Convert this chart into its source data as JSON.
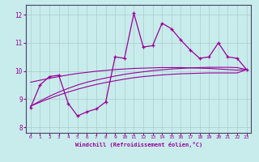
{
  "xlabel": "Windchill (Refroidissement éolien,°C)",
  "bg_color": "#c8ecec",
  "line_color": "#990099",
  "grid_color": "#aacccc",
  "xlim": [
    -0.5,
    23.5
  ],
  "ylim": [
    7.8,
    12.35
  ],
  "xticks": [
    0,
    1,
    2,
    3,
    4,
    5,
    6,
    7,
    8,
    9,
    10,
    11,
    12,
    13,
    14,
    15,
    16,
    17,
    18,
    19,
    20,
    21,
    22,
    23
  ],
  "yticks": [
    8,
    9,
    10,
    11,
    12
  ],
  "hours": [
    0,
    1,
    2,
    3,
    4,
    5,
    6,
    7,
    8,
    9,
    10,
    11,
    12,
    13,
    14,
    15,
    16,
    17,
    18,
    19,
    20,
    21,
    22,
    23
  ],
  "line_data": [
    8.7,
    9.5,
    9.8,
    9.85,
    8.85,
    8.4,
    8.55,
    8.65,
    8.9,
    10.5,
    10.45,
    12.05,
    10.85,
    10.9,
    11.7,
    11.5,
    11.1,
    10.75,
    10.45,
    10.5,
    11.0,
    10.5,
    10.45,
    10.05
  ],
  "reg1": [
    8.75,
    8.93,
    9.1,
    9.25,
    9.38,
    9.5,
    9.6,
    9.68,
    9.75,
    9.82,
    9.88,
    9.93,
    9.97,
    10.01,
    10.04,
    10.07,
    10.09,
    10.11,
    10.12,
    10.13,
    10.13,
    10.13,
    10.12,
    10.05
  ],
  "reg2": [
    9.6,
    9.67,
    9.74,
    9.8,
    9.86,
    9.91,
    9.95,
    9.99,
    10.02,
    10.05,
    10.07,
    10.09,
    10.1,
    10.11,
    10.12,
    10.12,
    10.12,
    10.11,
    10.1,
    10.09,
    10.07,
    10.05,
    10.03,
    10.05
  ],
  "reg3": [
    8.75,
    8.89,
    9.02,
    9.14,
    9.25,
    9.35,
    9.44,
    9.52,
    9.59,
    9.65,
    9.71,
    9.76,
    9.8,
    9.83,
    9.86,
    9.88,
    9.9,
    9.91,
    9.92,
    9.93,
    9.93,
    9.93,
    9.93,
    10.05
  ]
}
